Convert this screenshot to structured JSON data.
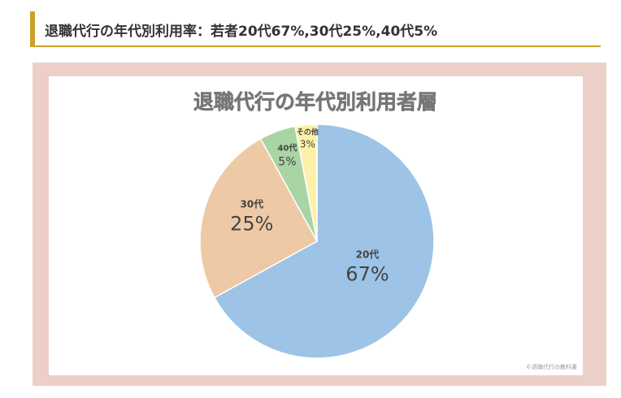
{
  "heading": {
    "text": "退職代行の年代別利用率：若者20代67%,30代25%,40代5%"
  },
  "chart_data": {
    "type": "pie",
    "title": "退職代行の年代別利用者層",
    "credit": "©退職代行の教科書",
    "slices": [
      {
        "label": "20代",
        "value": 67,
        "value_text": "67%",
        "color": "#9dc3e6"
      },
      {
        "label": "30代",
        "value": 25,
        "value_text": "25%",
        "color": "#eec9a6"
      },
      {
        "label": "40代",
        "value": 5,
        "value_text": "5%",
        "color": "#a9d4a4"
      },
      {
        "label": "その他",
        "value": 3,
        "value_text": "3%",
        "color": "#fdf0a8"
      }
    ]
  }
}
